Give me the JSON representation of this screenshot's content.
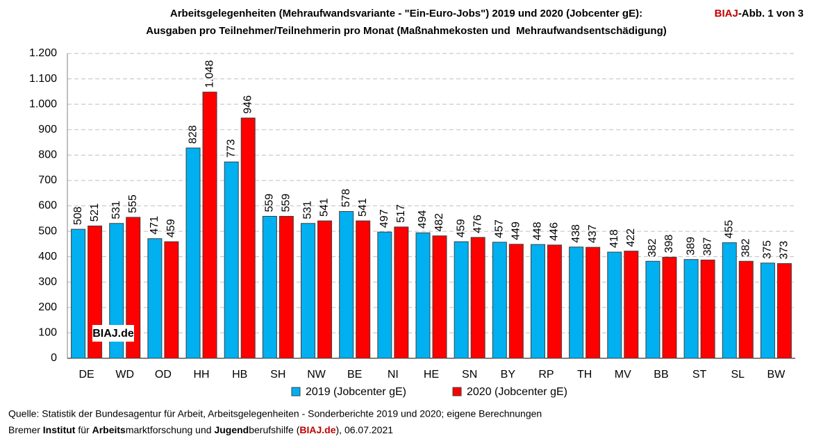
{
  "chart_data": {
    "type": "bar",
    "title": "Arbeitsgelegenheiten (Mehraufwandsvariante - \"Ein-Euro-Jobs\") 2019 und 2020 (Jobcenter gE):",
    "subtitle": "Ausgaben pro Teilnehmer/Teilnehmerin pro Monat (Maßnahmekosten und  Mehraufwandsentschädigung)",
    "categories": [
      "DE",
      "WD",
      "OD",
      "HH",
      "HB",
      "SH",
      "NW",
      "BE",
      "NI",
      "HE",
      "SN",
      "BY",
      "RP",
      "TH",
      "MV",
      "BB",
      "ST",
      "SL",
      "BW"
    ],
    "series": [
      {
        "name": "2019 (Jobcenter gE)",
        "color": "#00b0f0",
        "values": [
          508,
          531,
          471,
          828,
          773,
          559,
          531,
          578,
          497,
          494,
          459,
          457,
          448,
          438,
          418,
          382,
          389,
          455,
          375
        ],
        "value_labels": [
          "508",
          "531",
          "471",
          "828",
          "773",
          "559",
          "531",
          "578",
          "497",
          "494",
          "459",
          "457",
          "448",
          "438",
          "418",
          "382",
          "389",
          "455",
          "375"
        ]
      },
      {
        "name": "2020 (Jobcenter gE)",
        "color": "#ff0000",
        "values": [
          521,
          555,
          459,
          1048,
          946,
          559,
          541,
          541,
          517,
          482,
          476,
          449,
          446,
          437,
          422,
          398,
          387,
          382,
          373
        ],
        "value_labels": [
          "521",
          "555",
          "459",
          "1.048",
          "946",
          "559",
          "541",
          "541",
          "517",
          "482",
          "476",
          "449",
          "446",
          "437",
          "422",
          "398",
          "387",
          "382",
          "373"
        ]
      }
    ],
    "ylim": [
      0,
      1200
    ],
    "yticks": [
      0,
      100,
      200,
      300,
      400,
      500,
      600,
      700,
      800,
      900,
      {
        "value": 1000,
        "label": "1.000"
      },
      {
        "value": 1100,
        "label": "1.100"
      },
      {
        "value": 1200,
        "label": "1.200"
      }
    ],
    "grid": true
  },
  "header": {
    "brand": "BIAJ",
    "figure": "-Abb. 1 von 3"
  },
  "watermark": "BIAJ.de",
  "footer": {
    "source": "Quelle: Statistik der Bundesagentur für Arbeit, Arbeitsgelegenheiten - Sonderberichte 2019 und 2020; eigene Berechnungen",
    "credit": [
      "Bremer ",
      "Institut",
      " für ",
      "Arbeits",
      "marktforschung und ",
      "Jugend",
      "berufshilfe (",
      "BIAJ.de",
      "), 06.07.2021"
    ]
  }
}
